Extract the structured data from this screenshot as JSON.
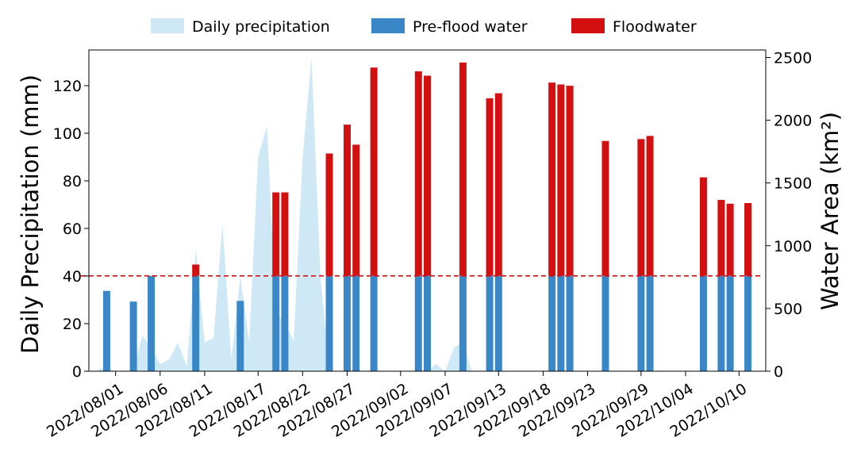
{
  "chart_data": {
    "type": "bar",
    "legend": {
      "placement": "top-center",
      "entries": [
        {
          "label": "Daily precipitation",
          "color": "#cfe8f5"
        },
        {
          "label": "Pre-flood water",
          "color": "#3a87c8"
        },
        {
          "label": "Floodwater",
          "color": "#d40f0f"
        }
      ]
    },
    "left_axis": {
      "label": "Daily Precipitation (mm)",
      "ylim": [
        0,
        135
      ],
      "ticks": [
        0,
        20,
        40,
        60,
        80,
        100,
        120
      ]
    },
    "right_axis": {
      "label": "Water Area (km²)",
      "ylim": [
        0,
        2560
      ],
      "ticks": [
        0,
        500,
        1000,
        1500,
        2000,
        2500
      ]
    },
    "x_axis": {
      "start_date": "2022-07-29",
      "end_date": "2022-10-13",
      "tick_labels": [
        "2022/08/01",
        "2022/08/06",
        "2022/08/11",
        "2022/08/17",
        "2022/08/22",
        "2022/08/27",
        "2022/09/02",
        "2022/09/07",
        "2022/09/13",
        "2022/09/18",
        "2022/09/23",
        "2022/09/29",
        "2022/10/04",
        "2022/10/10"
      ],
      "tick_dates": [
        "2022-08-01",
        "2022-08-06",
        "2022-08-11",
        "2022-08-17",
        "2022-08-22",
        "2022-08-27",
        "2022-09-02",
        "2022-09-07",
        "2022-09-13",
        "2022-09-18",
        "2022-09-23",
        "2022-09-29",
        "2022-10-04",
        "2022-10-10"
      ]
    },
    "threshold": {
      "value_km2": 760,
      "color": "#d40f0f",
      "style": "dashed"
    },
    "precipitation": [
      {
        "date": "2022-07-30",
        "mm": 1
      },
      {
        "date": "2022-07-31",
        "mm": 1
      },
      {
        "date": "2022-08-01",
        "mm": 0
      },
      {
        "date": "2022-08-02",
        "mm": 0
      },
      {
        "date": "2022-08-03",
        "mm": 0
      },
      {
        "date": "2022-08-04",
        "mm": 15
      },
      {
        "date": "2022-08-05",
        "mm": 10
      },
      {
        "date": "2022-08-06",
        "mm": 3
      },
      {
        "date": "2022-08-07",
        "mm": 5
      },
      {
        "date": "2022-08-08",
        "mm": 12
      },
      {
        "date": "2022-08-09",
        "mm": 2
      },
      {
        "date": "2022-08-10",
        "mm": 51
      },
      {
        "date": "2022-08-11",
        "mm": 12
      },
      {
        "date": "2022-08-12",
        "mm": 14
      },
      {
        "date": "2022-08-13",
        "mm": 62
      },
      {
        "date": "2022-08-14",
        "mm": 5
      },
      {
        "date": "2022-08-15",
        "mm": 40
      },
      {
        "date": "2022-08-16",
        "mm": 12
      },
      {
        "date": "2022-08-17",
        "mm": 90
      },
      {
        "date": "2022-08-18",
        "mm": 103
      },
      {
        "date": "2022-08-19",
        "mm": 25
      },
      {
        "date": "2022-08-20",
        "mm": 20
      },
      {
        "date": "2022-08-21",
        "mm": 13
      },
      {
        "date": "2022-08-22",
        "mm": 90
      },
      {
        "date": "2022-08-23",
        "mm": 132
      },
      {
        "date": "2022-08-24",
        "mm": 40
      },
      {
        "date": "2022-08-25",
        "mm": 0
      },
      {
        "date": "2022-09-05",
        "mm": 0
      },
      {
        "date": "2022-09-06",
        "mm": 3
      },
      {
        "date": "2022-09-07",
        "mm": 0
      },
      {
        "date": "2022-09-08",
        "mm": 10
      },
      {
        "date": "2022-09-09",
        "mm": 12
      },
      {
        "date": "2022-09-10",
        "mm": 0
      }
    ],
    "water_area": [
      {
        "date": "2022-07-31",
        "pre_flood_km2": 640,
        "flood_km2": 0
      },
      {
        "date": "2022-08-03",
        "pre_flood_km2": 555,
        "flood_km2": 0
      },
      {
        "date": "2022-08-05",
        "pre_flood_km2": 760,
        "flood_km2": 0
      },
      {
        "date": "2022-08-10",
        "pre_flood_km2": 760,
        "flood_km2": 850
      },
      {
        "date": "2022-08-15",
        "pre_flood_km2": 560,
        "flood_km2": 0
      },
      {
        "date": "2022-08-19",
        "pre_flood_km2": 760,
        "flood_km2": 1425
      },
      {
        "date": "2022-08-20",
        "pre_flood_km2": 760,
        "flood_km2": 1425
      },
      {
        "date": "2022-08-25",
        "pre_flood_km2": 760,
        "flood_km2": 1735
      },
      {
        "date": "2022-08-27",
        "pre_flood_km2": 760,
        "flood_km2": 1965
      },
      {
        "date": "2022-08-28",
        "pre_flood_km2": 760,
        "flood_km2": 1805
      },
      {
        "date": "2022-08-30",
        "pre_flood_km2": 760,
        "flood_km2": 2420
      },
      {
        "date": "2022-09-04",
        "pre_flood_km2": 760,
        "flood_km2": 2390
      },
      {
        "date": "2022-09-05",
        "pre_flood_km2": 760,
        "flood_km2": 2355
      },
      {
        "date": "2022-09-09",
        "pre_flood_km2": 760,
        "flood_km2": 2460
      },
      {
        "date": "2022-09-12",
        "pre_flood_km2": 760,
        "flood_km2": 2175
      },
      {
        "date": "2022-09-13",
        "pre_flood_km2": 760,
        "flood_km2": 2215
      },
      {
        "date": "2022-09-19",
        "pre_flood_km2": 760,
        "flood_km2": 2300
      },
      {
        "date": "2022-09-20",
        "pre_flood_km2": 760,
        "flood_km2": 2285
      },
      {
        "date": "2022-09-21",
        "pre_flood_km2": 760,
        "flood_km2": 2275
      },
      {
        "date": "2022-09-25",
        "pre_flood_km2": 760,
        "flood_km2": 1835
      },
      {
        "date": "2022-09-29",
        "pre_flood_km2": 760,
        "flood_km2": 1850
      },
      {
        "date": "2022-09-30",
        "pre_flood_km2": 760,
        "flood_km2": 1875
      },
      {
        "date": "2022-10-06",
        "pre_flood_km2": 760,
        "flood_km2": 1545
      },
      {
        "date": "2022-10-08",
        "pre_flood_km2": 760,
        "flood_km2": 1365
      },
      {
        "date": "2022-10-09",
        "pre_flood_km2": 760,
        "flood_km2": 1335
      },
      {
        "date": "2022-10-11",
        "pre_flood_km2": 760,
        "flood_km2": 1340
      }
    ]
  }
}
